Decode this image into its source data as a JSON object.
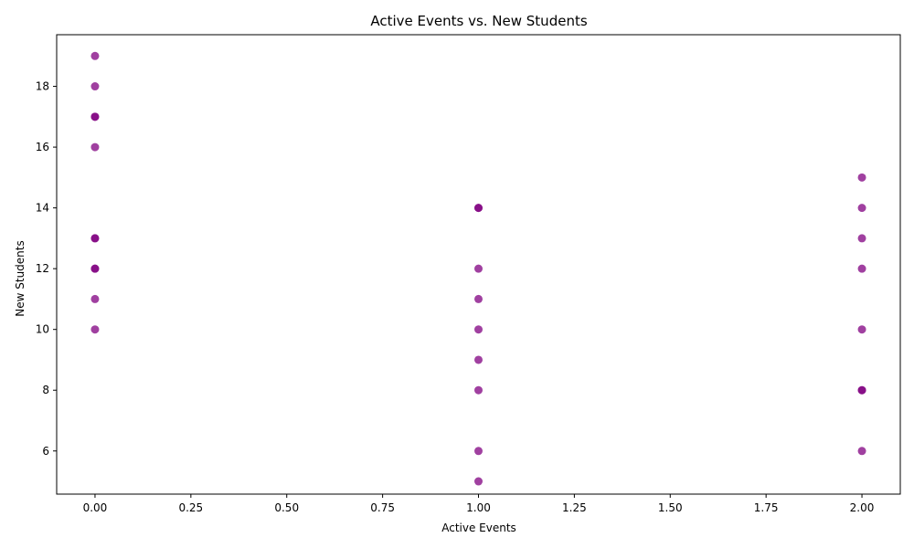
{
  "chart_data": {
    "type": "scatter",
    "title": "Active Events vs. New Students",
    "xlabel": "Active Events",
    "ylabel": "New Students",
    "xlim": [
      -0.1,
      2.1
    ],
    "ylim": [
      4.58,
      19.7
    ],
    "xticks": [
      0.0,
      0.25,
      0.5,
      0.75,
      1.0,
      1.25,
      1.5,
      1.75,
      2.0
    ],
    "xtick_labels": [
      "0.00",
      "0.25",
      "0.50",
      "0.75",
      "1.00",
      "1.25",
      "1.50",
      "1.75",
      "2.00"
    ],
    "yticks": [
      6,
      8,
      10,
      12,
      14,
      16,
      18
    ],
    "ytick_labels": [
      "6",
      "8",
      "10",
      "12",
      "14",
      "16",
      "18"
    ],
    "grid": false,
    "legend": "none",
    "point_color": "#800080",
    "point_alpha": 0.75,
    "points": [
      {
        "x": 0,
        "y": 19
      },
      {
        "x": 0,
        "y": 18
      },
      {
        "x": 0,
        "y": 17
      },
      {
        "x": 0,
        "y": 17
      },
      {
        "x": 0,
        "y": 16
      },
      {
        "x": 0,
        "y": 13
      },
      {
        "x": 0,
        "y": 13
      },
      {
        "x": 0,
        "y": 12
      },
      {
        "x": 0,
        "y": 12
      },
      {
        "x": 0,
        "y": 11
      },
      {
        "x": 0,
        "y": 10
      },
      {
        "x": 1,
        "y": 14
      },
      {
        "x": 1,
        "y": 14
      },
      {
        "x": 1,
        "y": 12
      },
      {
        "x": 1,
        "y": 11
      },
      {
        "x": 1,
        "y": 10
      },
      {
        "x": 1,
        "y": 9
      },
      {
        "x": 1,
        "y": 8
      },
      {
        "x": 1,
        "y": 6
      },
      {
        "x": 1,
        "y": 5
      },
      {
        "x": 2,
        "y": 15
      },
      {
        "x": 2,
        "y": 14
      },
      {
        "x": 2,
        "y": 13
      },
      {
        "x": 2,
        "y": 12
      },
      {
        "x": 2,
        "y": 10
      },
      {
        "x": 2,
        "y": 8
      },
      {
        "x": 2,
        "y": 8
      },
      {
        "x": 2,
        "y": 6
      }
    ]
  }
}
